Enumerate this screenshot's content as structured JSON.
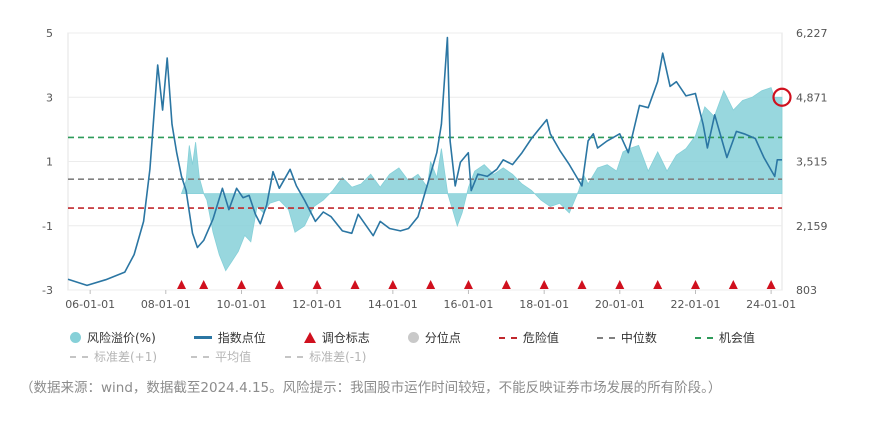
{
  "chart_data": {
    "type": "line",
    "x_ticks": [
      "06-01-01",
      "08-01-01",
      "10-01-01",
      "12-01-01",
      "14-01-01",
      "16-01-01",
      "18-01-01",
      "20-01-01",
      "22-01-01",
      "24-01-01"
    ],
    "y_left_ticks": [
      "5",
      "3",
      "1",
      "-1",
      "-3"
    ],
    "y_right_ticks": [
      "6,227",
      "4,871",
      "3,515",
      "2,159",
      "803"
    ],
    "y_left_range": [
      -3,
      5
    ],
    "y_right_range": [
      803,
      6227
    ],
    "x_range": [
      "2005-06-01",
      "2024-04-15"
    ],
    "reference_lines": [
      {
        "name": "危险值",
        "value": -0.45,
        "color": "#c0282d"
      },
      {
        "name": "中位数",
        "value": 0.45,
        "color": "#808080"
      },
      {
        "name": "机会值",
        "value": 1.75,
        "color": "#2e9b5a"
      }
    ],
    "series": [
      {
        "name": "风险溢价(%)",
        "axis": "left",
        "color": "#86d0d8",
        "points": [
          [
            "2008-06-01",
            0.0
          ],
          [
            "2008-07-15",
            0.4
          ],
          [
            "2008-08-15",
            1.5
          ],
          [
            "2008-09-15",
            0.9
          ],
          [
            "2008-10-15",
            1.6
          ],
          [
            "2008-11-20",
            0.5
          ],
          [
            "2009-01-01",
            0.0
          ],
          [
            "2009-02-01",
            -0.2
          ],
          [
            "2009-04-01",
            -1.2
          ],
          [
            "2009-06-01",
            -1.9
          ],
          [
            "2009-08-01",
            -2.4
          ],
          [
            "2009-10-01",
            -2.1
          ],
          [
            "2009-12-01",
            -1.8
          ],
          [
            "2010-02-01",
            -1.3
          ],
          [
            "2010-04-01",
            -1.5
          ],
          [
            "2010-06-01",
            -0.4
          ],
          [
            "2010-08-01",
            -0.6
          ],
          [
            "2010-10-01",
            -0.3
          ],
          [
            "2011-01-01",
            -0.2
          ],
          [
            "2011-04-01",
            -0.5
          ],
          [
            "2011-06-01",
            -1.2
          ],
          [
            "2011-09-01",
            -1.0
          ],
          [
            "2011-12-01",
            -0.4
          ],
          [
            "2012-03-01",
            -0.2
          ],
          [
            "2012-06-01",
            0.1
          ],
          [
            "2012-09-01",
            0.5
          ],
          [
            "2012-12-01",
            0.2
          ],
          [
            "2013-03-01",
            0.3
          ],
          [
            "2013-06-01",
            0.6
          ],
          [
            "2013-09-01",
            0.2
          ],
          [
            "2013-12-01",
            0.6
          ],
          [
            "2014-03-01",
            0.8
          ],
          [
            "2014-06-01",
            0.4
          ],
          [
            "2014-09-01",
            0.6
          ],
          [
            "2014-12-01",
            0.2
          ],
          [
            "2015-01-01",
            1.0
          ],
          [
            "2015-03-01",
            0.5
          ],
          [
            "2015-04-15",
            1.4
          ],
          [
            "2015-05-15",
            0.7
          ],
          [
            "2015-06-15",
            0.0
          ],
          [
            "2015-08-01",
            -0.5
          ],
          [
            "2015-09-15",
            -1.0
          ],
          [
            "2015-11-01",
            -0.6
          ],
          [
            "2016-01-01",
            0.2
          ],
          [
            "2016-03-01",
            0.7
          ],
          [
            "2016-06-01",
            0.9
          ],
          [
            "2016-09-01",
            0.6
          ],
          [
            "2016-12-01",
            0.8
          ],
          [
            "2017-03-01",
            0.6
          ],
          [
            "2017-06-01",
            0.3
          ],
          [
            "2017-09-01",
            0.1
          ],
          [
            "2017-12-01",
            -0.2
          ],
          [
            "2018-03-01",
            -0.4
          ],
          [
            "2018-06-01",
            -0.3
          ],
          [
            "2018-09-01",
            -0.6
          ],
          [
            "2018-12-01",
            0.1
          ],
          [
            "2019-01-15",
            0.6
          ],
          [
            "2019-03-01",
            0.3
          ],
          [
            "2019-06-01",
            0.8
          ],
          [
            "2019-09-01",
            0.9
          ],
          [
            "2019-12-01",
            0.7
          ],
          [
            "2020-02-01",
            1.3
          ],
          [
            "2020-04-01",
            1.4
          ],
          [
            "2020-07-01",
            1.5
          ],
          [
            "2020-10-01",
            0.7
          ],
          [
            "2021-01-01",
            1.3
          ],
          [
            "2021-04-01",
            0.7
          ],
          [
            "2021-07-01",
            1.2
          ],
          [
            "2021-10-01",
            1.4
          ],
          [
            "2022-01-01",
            1.8
          ],
          [
            "2022-04-01",
            2.7
          ],
          [
            "2022-07-01",
            2.4
          ],
          [
            "2022-10-01",
            3.2
          ],
          [
            "2023-01-01",
            2.6
          ],
          [
            "2023-04-01",
            2.9
          ],
          [
            "2023-07-01",
            3.0
          ],
          [
            "2023-10-01",
            3.2
          ],
          [
            "2024-01-01",
            3.3
          ],
          [
            "2024-02-01",
            3.0
          ],
          [
            "2024-04-15",
            3.0
          ]
        ]
      },
      {
        "name": "指数点位",
        "axis": "right",
        "color": "#2b76a3",
        "points": [
          [
            "2005-06-01",
            1030
          ],
          [
            "2005-12-01",
            900
          ],
          [
            "2006-06-01",
            1020
          ],
          [
            "2006-12-01",
            1180
          ],
          [
            "2007-03-01",
            1550
          ],
          [
            "2007-06-01",
            2250
          ],
          [
            "2007-08-01",
            3350
          ],
          [
            "2007-10-15",
            5550
          ],
          [
            "2007-12-01",
            4600
          ],
          [
            "2008-01-15",
            5700
          ],
          [
            "2008-03-01",
            4300
          ],
          [
            "2008-04-15",
            3700
          ],
          [
            "2008-06-01",
            3200
          ],
          [
            "2008-07-15",
            2900
          ],
          [
            "2008-09-15",
            2000
          ],
          [
            "2008-11-01",
            1700
          ],
          [
            "2009-01-01",
            1850
          ],
          [
            "2009-04-01",
            2300
          ],
          [
            "2009-07-01",
            2950
          ],
          [
            "2009-09-01",
            2500
          ],
          [
            "2009-11-15",
            2950
          ],
          [
            "2010-01-15",
            2750
          ],
          [
            "2010-03-15",
            2800
          ],
          [
            "2010-05-15",
            2400
          ],
          [
            "2010-07-01",
            2200
          ],
          [
            "2010-09-01",
            2600
          ],
          [
            "2010-11-01",
            3300
          ],
          [
            "2011-01-01",
            2950
          ],
          [
            "2011-04-15",
            3350
          ],
          [
            "2011-06-15",
            3000
          ],
          [
            "2011-09-01",
            2700
          ],
          [
            "2011-12-15",
            2250
          ],
          [
            "2012-03-01",
            2450
          ],
          [
            "2012-05-15",
            2350
          ],
          [
            "2012-09-01",
            2050
          ],
          [
            "2012-12-01",
            2000
          ],
          [
            "2013-02-01",
            2400
          ],
          [
            "2013-06-25",
            1950
          ],
          [
            "2013-09-01",
            2250
          ],
          [
            "2013-12-01",
            2100
          ],
          [
            "2014-03-15",
            2050
          ],
          [
            "2014-06-01",
            2100
          ],
          [
            "2014-09-01",
            2350
          ],
          [
            "2014-12-31",
            3250
          ],
          [
            "2015-03-01",
            3700
          ],
          [
            "2015-04-15",
            4300
          ],
          [
            "2015-06-12",
            6130
          ],
          [
            "2015-07-08",
            3950
          ],
          [
            "2015-08-26",
            3000
          ],
          [
            "2015-10-15",
            3500
          ],
          [
            "2015-12-31",
            3700
          ],
          [
            "2016-01-28",
            2900
          ],
          [
            "2016-04-01",
            3250
          ],
          [
            "2016-07-01",
            3200
          ],
          [
            "2016-10-01",
            3350
          ],
          [
            "2016-12-01",
            3550
          ],
          [
            "2017-03-01",
            3450
          ],
          [
            "2017-06-01",
            3700
          ],
          [
            "2017-09-01",
            4000
          ],
          [
            "2017-12-01",
            4250
          ],
          [
            "2018-01-26",
            4400
          ],
          [
            "2018-03-01",
            4100
          ],
          [
            "2018-06-01",
            3750
          ],
          [
            "2018-09-01",
            3450
          ],
          [
            "2018-12-31",
            3000
          ],
          [
            "2019-03-01",
            3950
          ],
          [
            "2019-04-20",
            4100
          ],
          [
            "2019-06-01",
            3800
          ],
          [
            "2019-09-01",
            3950
          ],
          [
            "2019-12-31",
            4100
          ],
          [
            "2020-03-23",
            3700
          ],
          [
            "2020-07-09",
            4700
          ],
          [
            "2020-10-01",
            4650
          ],
          [
            "2020-12-31",
            5200
          ],
          [
            "2021-02-18",
            5800
          ],
          [
            "2021-05-01",
            5100
          ],
          [
            "2021-07-01",
            5200
          ],
          [
            "2021-10-01",
            4900
          ],
          [
            "2021-12-31",
            4950
          ],
          [
            "2022-03-15",
            4300
          ],
          [
            "2022-04-26",
            3800
          ],
          [
            "2022-07-05",
            4500
          ],
          [
            "2022-10-31",
            3600
          ],
          [
            "2023-01-31",
            4150
          ],
          [
            "2023-04-15",
            4100
          ],
          [
            "2023-08-01",
            4000
          ],
          [
            "2023-10-23",
            3600
          ],
          [
            "2024-02-05",
            3200
          ],
          [
            "2024-03-01",
            3550
          ],
          [
            "2024-04-15",
            3550
          ]
        ]
      }
    ],
    "rebalance_markers": [
      "2008-06-01",
      "2009-01-01",
      "2010-01-01",
      "2011-01-01",
      "2012-01-01",
      "2013-01-01",
      "2014-01-01",
      "2015-01-01",
      "2016-01-01",
      "2017-01-01",
      "2018-01-01",
      "2019-01-01",
      "2020-01-01",
      "2021-01-01",
      "2022-01-01",
      "2023-01-01",
      "2024-01-01"
    ],
    "marker_color": "#d0101e",
    "highlight_point": {
      "x": "2024-04-15",
      "axis": "left",
      "y": 3.0
    }
  },
  "legend": {
    "row1": [
      {
        "label": "风险溢价(%)",
        "swatch": "dot",
        "color": "#86d0d8"
      },
      {
        "label": "指数点位",
        "swatch": "line",
        "color": "#2b76a3"
      },
      {
        "label": "调仓标志",
        "swatch": "triangle",
        "color": "#d0101e"
      },
      {
        "label": "分位点",
        "swatch": "dot",
        "color": "#c9c9c9"
      },
      {
        "label": "危险值",
        "swatch": "dash",
        "color": "#c0282d"
      },
      {
        "label": "中位数",
        "swatch": "dash",
        "color": "#808080"
      },
      {
        "label": "机会值",
        "swatch": "dash",
        "color": "#2e9b5a"
      }
    ],
    "row2": [
      {
        "label": "标准差(+1)",
        "swatch": "dash",
        "color": "#c5c5c5"
      },
      {
        "label": "平均值",
        "swatch": "dash",
        "color": "#c5c5c5"
      },
      {
        "label": "标准差(-1)",
        "swatch": "dash",
        "color": "#c5c5c5"
      }
    ]
  },
  "footnote": "（数据来源：wind，数据截至2024.4.15。风险提示：我国股市运作时间较短，不能反映证券市场发展的所有阶段。）"
}
